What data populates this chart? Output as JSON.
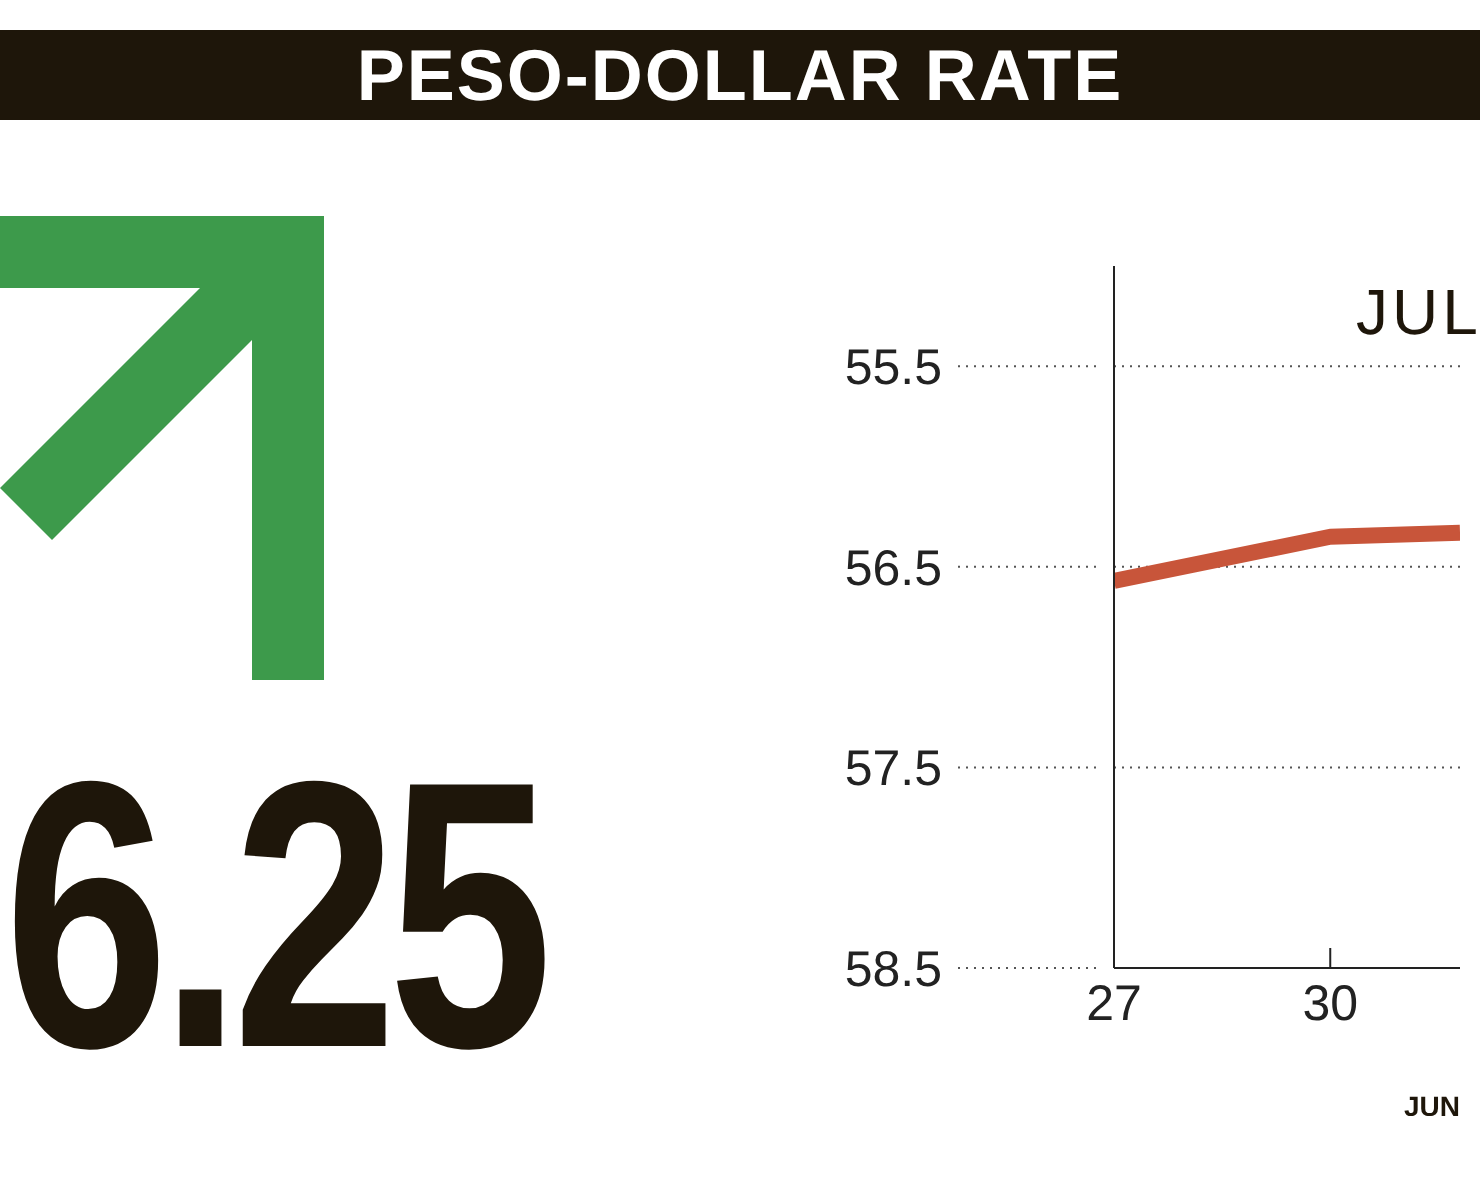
{
  "chart_data": {
    "type": "line",
    "title": "PESO-DOLLAR RATE",
    "xlabel": "JUN",
    "annotations": [
      "JUL",
      "6.25"
    ],
    "x": [
      27,
      30,
      31.8
    ],
    "series": [
      {
        "color": "#c8553a",
        "values": [
          56.57,
          56.35,
          56.33
        ]
      }
    ],
    "xlim": [
      27,
      31.8
    ],
    "xticks": [
      27,
      30
    ],
    "ylim": [
      58.5,
      55
    ],
    "yticks": [
      55.5,
      56.5,
      57.5,
      58.5
    ],
    "grid": "y",
    "marker": "none",
    "line_style": "solid"
  }
}
